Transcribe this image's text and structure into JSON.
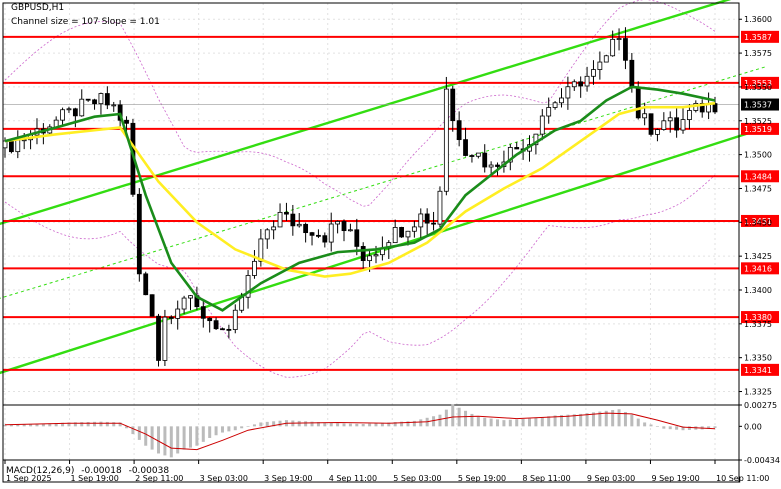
{
  "header": {
    "symbol": "GBPUSD,H1",
    "channel_info": "Channel size = 107 Slope = 1.01"
  },
  "colors": {
    "level_line": "#ff0000",
    "level_badge_bg": "#ff0000",
    "level_badge_text": "#ffffff",
    "current_badge_bg": "#000000",
    "channel": "#33dd11",
    "channel_mid": "#33dd11",
    "ma_fast": "#ffee22",
    "ma_slow": "#1a8c1a",
    "candles": "#000000",
    "bollinger": "#cc66cc",
    "macd_hist": "#bbbbbb",
    "macd_signal": "#cc0000",
    "grid": "#e2e2e2"
  },
  "chart_data": [
    {
      "type": "candlestick",
      "title": "GBPUSD,H1",
      "subtitle": "Channel size = 107 Slope = 1.01",
      "x_ticks": [
        "1 Sep 2025",
        "1 Sep 19:00",
        "2 Sep 11:00",
        "3 Sep 03:00",
        "3 Sep 19:00",
        "4 Sep 11:00",
        "5 Sep 03:00",
        "5 Sep 19:00",
        "8 Sep 11:00",
        "9 Sep 03:00",
        "9 Sep 19:00",
        "10 Sep 11:00"
      ],
      "y_ticks": [
        "1.3600",
        "1.3575",
        "1.3550",
        "1.3525",
        "1.3500",
        "1.3475",
        "1.3450",
        "1.3425",
        "1.3400",
        "1.3375",
        "1.3350",
        "1.3325"
      ],
      "ylim": [
        1.3318,
        1.3612
      ],
      "levels": [
        1.3587,
        1.3553,
        1.3519,
        1.3484,
        1.3451,
        1.3416,
        1.338,
        1.3341
      ],
      "level_labels": [
        "1.3587",
        "1.3553",
        "1.3519",
        "1.3484",
        "1.3451",
        "1.3416",
        "1.3380",
        "1.3341"
      ],
      "current_price": 1.3537,
      "current_price_label": "1.3537",
      "channel": {
        "upper": [
          [
            0,
            1.345
          ],
          [
            110,
            1.361
          ]
        ],
        "middle": [
          [
            0,
            1.3395
          ],
          [
            119,
            1.3565
          ]
        ],
        "lower": [
          [
            0,
            1.334
          ],
          [
            119,
            1.352
          ]
        ]
      },
      "price_path": [
        [
          0,
          1.3505
        ],
        [
          4,
          1.3515
        ],
        [
          8,
          1.3525
        ],
        [
          12,
          1.3535
        ],
        [
          15,
          1.354
        ],
        [
          17,
          1.3535
        ],
        [
          19,
          1.352
        ],
        [
          20,
          1.347
        ],
        [
          21,
          1.341
        ],
        [
          23,
          1.3385
        ],
        [
          24,
          1.335
        ],
        [
          25,
          1.338
        ],
        [
          28,
          1.3395
        ],
        [
          30,
          1.3385
        ],
        [
          33,
          1.3375
        ],
        [
          35,
          1.3365
        ],
        [
          37,
          1.3395
        ],
        [
          39,
          1.342
        ],
        [
          41,
          1.3445
        ],
        [
          43,
          1.3455
        ],
        [
          45,
          1.345
        ],
        [
          48,
          1.3445
        ],
        [
          50,
          1.344
        ],
        [
          52,
          1.345
        ],
        [
          54,
          1.344
        ],
        [
          56,
          1.3425
        ],
        [
          58,
          1.343
        ],
        [
          60,
          1.344
        ],
        [
          62,
          1.3445
        ],
        [
          65,
          1.3455
        ],
        [
          67,
          1.345
        ],
        [
          68,
          1.3475
        ],
        [
          69,
          1.355
        ],
        [
          70,
          1.3525
        ],
        [
          72,
          1.3505
        ],
        [
          74,
          1.35
        ],
        [
          76,
          1.349
        ],
        [
          78,
          1.35
        ],
        [
          80,
          1.3505
        ],
        [
          82,
          1.351
        ],
        [
          84,
          1.353
        ],
        [
          86,
          1.354
        ],
        [
          88,
          1.3545
        ],
        [
          90,
          1.3555
        ],
        [
          92,
          1.356
        ],
        [
          94,
          1.357
        ],
        [
          96,
          1.359
        ],
        [
          97,
          1.3575
        ],
        [
          98,
          1.355
        ],
        [
          99,
          1.353
        ],
        [
          101,
          1.352
        ],
        [
          103,
          1.3525
        ],
        [
          105,
          1.352
        ],
        [
          107,
          1.353
        ],
        [
          109,
          1.3535
        ],
        [
          111,
          1.3537
        ]
      ],
      "ma_fast": [
        [
          0,
          1.351
        ],
        [
          8,
          1.3515
        ],
        [
          18,
          1.352
        ],
        [
          24,
          1.348
        ],
        [
          30,
          1.345
        ],
        [
          36,
          1.343
        ],
        [
          44,
          1.3415
        ],
        [
          50,
          1.341
        ],
        [
          54,
          1.3412
        ],
        [
          60,
          1.342
        ],
        [
          66,
          1.3435
        ],
        [
          72,
          1.3458
        ],
        [
          78,
          1.3475
        ],
        [
          84,
          1.349
        ],
        [
          90,
          1.351
        ],
        [
          96,
          1.353
        ],
        [
          100,
          1.3535
        ],
        [
          106,
          1.3535
        ],
        [
          111,
          1.3538
        ]
      ],
      "ma_slow": [
        [
          0,
          1.351
        ],
        [
          8,
          1.352
        ],
        [
          14,
          1.3528
        ],
        [
          18,
          1.353
        ],
        [
          22,
          1.347
        ],
        [
          26,
          1.342
        ],
        [
          30,
          1.3395
        ],
        [
          34,
          1.3385
        ],
        [
          40,
          1.3405
        ],
        [
          46,
          1.342
        ],
        [
          52,
          1.3428
        ],
        [
          58,
          1.343
        ],
        [
          64,
          1.3435
        ],
        [
          68,
          1.3445
        ],
        [
          72,
          1.347
        ],
        [
          76,
          1.3485
        ],
        [
          80,
          1.35
        ],
        [
          86,
          1.3518
        ],
        [
          90,
          1.3525
        ],
        [
          94,
          1.354
        ],
        [
          98,
          1.355
        ],
        [
          102,
          1.3548
        ],
        [
          106,
          1.3545
        ],
        [
          111,
          1.354
        ]
      ],
      "macd": {
        "label": "MACD(12,26,9)",
        "values": [
          "-0.00018",
          "-0.00038"
        ],
        "y_ticks": [
          "0.00275",
          "0.00",
          "-0.00434"
        ],
        "ylim": [
          -0.00434,
          0.00275
        ],
        "hist": [
          [
            0,
            0.0002
          ],
          [
            5,
            0.0003
          ],
          [
            10,
            0.0005
          ],
          [
            15,
            0.0006
          ],
          [
            18,
            0.0005
          ],
          [
            20,
            -0.001
          ],
          [
            22,
            -0.0025
          ],
          [
            24,
            -0.0035
          ],
          [
            26,
            -0.004
          ],
          [
            28,
            -0.003
          ],
          [
            30,
            -0.0025
          ],
          [
            32,
            -0.0015
          ],
          [
            34,
            -0.0008
          ],
          [
            36,
            -0.0005
          ],
          [
            40,
            0.0005
          ],
          [
            44,
            0.0008
          ],
          [
            48,
            0.0006
          ],
          [
            52,
            0.0004
          ],
          [
            56,
            0.0003
          ],
          [
            60,
            0.0005
          ],
          [
            64,
            0.0007
          ],
          [
            68,
            0.0015
          ],
          [
            70,
            0.0028
          ],
          [
            72,
            0.002
          ],
          [
            74,
            0.0012
          ],
          [
            78,
            0.0008
          ],
          [
            82,
            0.001
          ],
          [
            86,
            0.0014
          ],
          [
            90,
            0.0016
          ],
          [
            94,
            0.002
          ],
          [
            96,
            0.0022
          ],
          [
            98,
            0.0015
          ],
          [
            100,
            0.0005
          ],
          [
            103,
            -0.0003
          ],
          [
            106,
            -0.0005
          ],
          [
            109,
            -0.0004
          ],
          [
            111,
            -0.0002
          ]
        ],
        "signal": [
          [
            0,
            0.0002
          ],
          [
            10,
            0.0004
          ],
          [
            18,
            0.0004
          ],
          [
            22,
            -0.001
          ],
          [
            26,
            -0.0028
          ],
          [
            30,
            -0.003
          ],
          [
            34,
            -0.0018
          ],
          [
            38,
            -0.0005
          ],
          [
            44,
            0.0004
          ],
          [
            52,
            0.0005
          ],
          [
            60,
            0.0004
          ],
          [
            66,
            0.0006
          ],
          [
            70,
            0.0012
          ],
          [
            74,
            0.0013
          ],
          [
            80,
            0.001
          ],
          [
            88,
            0.0013
          ],
          [
            94,
            0.0017
          ],
          [
            98,
            0.0016
          ],
          [
            102,
            0.0008
          ],
          [
            106,
            -0.0001
          ],
          [
            111,
            -0.0003
          ]
        ]
      }
    }
  ]
}
